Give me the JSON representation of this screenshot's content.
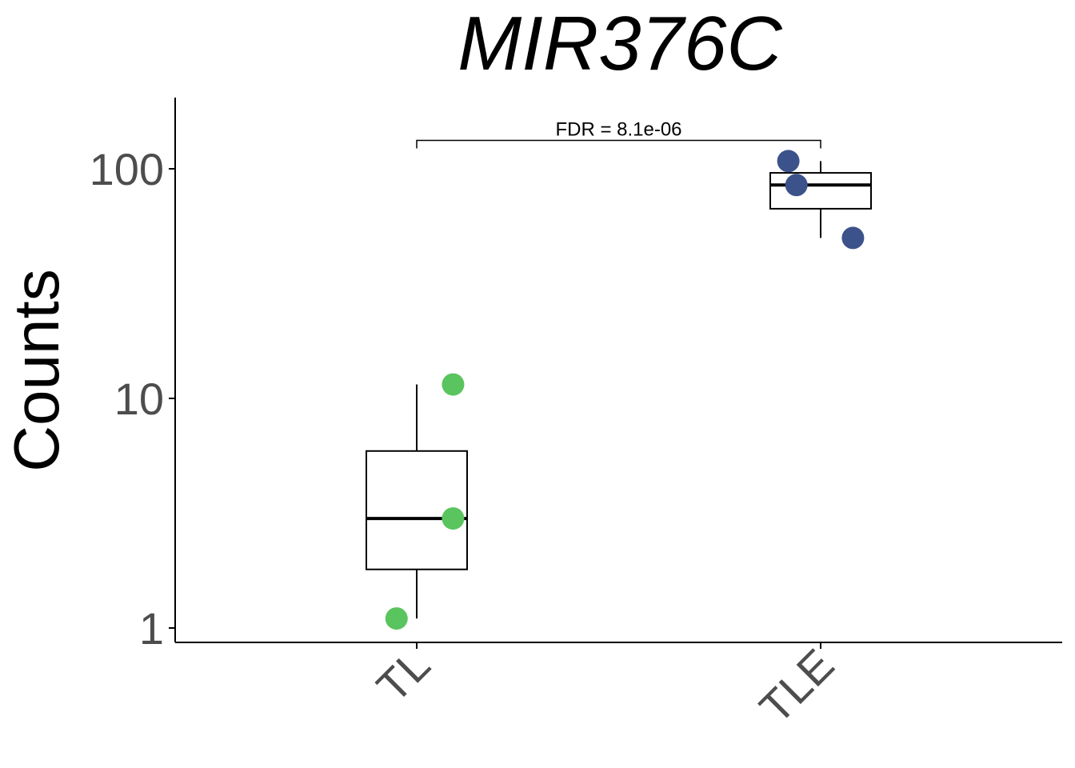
{
  "chart_data": {
    "type": "box",
    "title": "MIR376C",
    "ylabel": "Counts",
    "xlabel": "",
    "yscale": "log10",
    "ylim": [
      0.94,
      200
    ],
    "yticks": [
      {
        "value": 1,
        "label": "1"
      },
      {
        "value": 10,
        "label": "10"
      },
      {
        "value": 100,
        "label": "100"
      }
    ],
    "categories": [
      "TL",
      "TLE"
    ],
    "groups": [
      {
        "name": "TL",
        "color": "#5ac45e",
        "box": {
          "whisker_low": 1.1,
          "q1": 1.8,
          "median": 3.0,
          "q3": 5.9,
          "whisker_high": 11.5
        },
        "points": [
          1.1,
          3.0,
          11.5
        ],
        "jitter": [
          -0.05,
          0.09,
          0.09
        ]
      },
      {
        "name": "TLE",
        "color": "#3c528a",
        "box": {
          "whisker_low": 50,
          "q1": 67,
          "median": 85,
          "q3": 96,
          "whisker_high": 108
        },
        "points": [
          108,
          85,
          50
        ],
        "jitter": [
          -0.08,
          -0.06,
          0.08
        ]
      }
    ],
    "annotations": [
      {
        "text": "FDR = 8.1e-06",
        "from": "TL",
        "to": "TLE",
        "y": 133
      }
    ]
  }
}
